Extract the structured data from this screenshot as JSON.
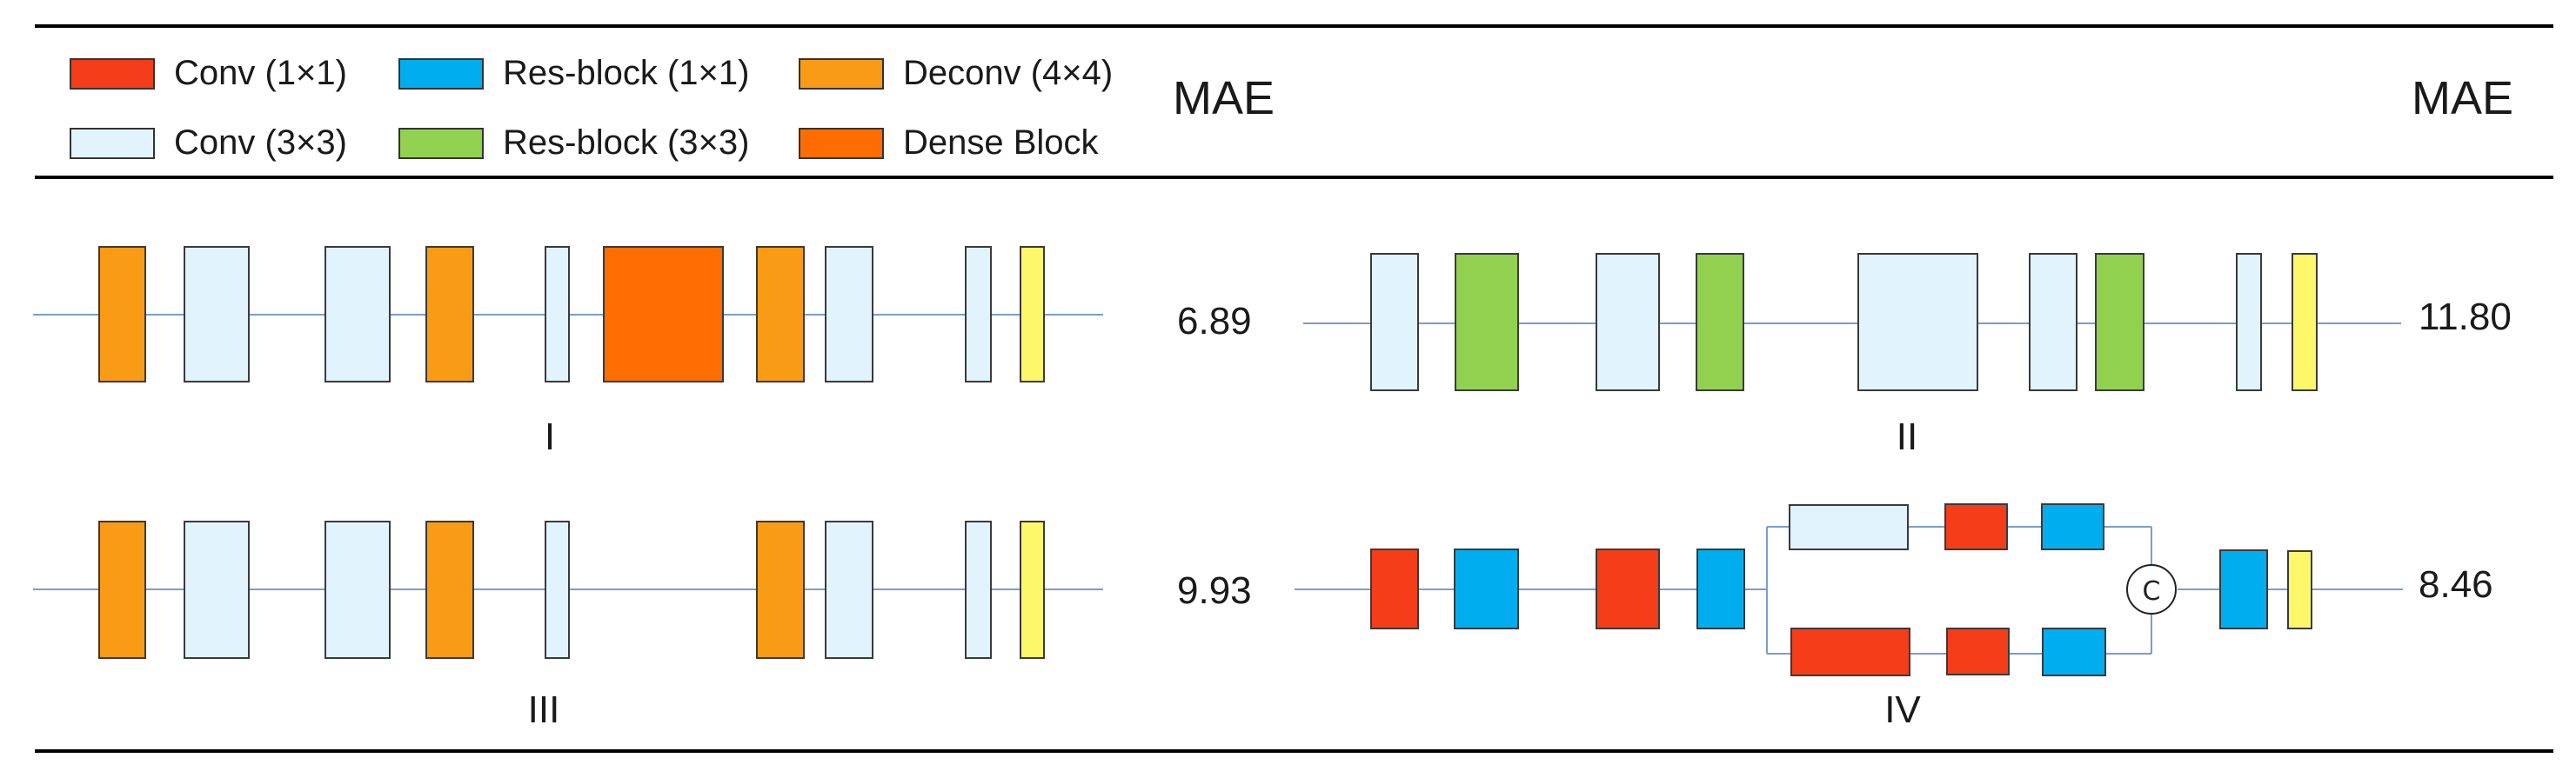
{
  "legend": [
    {
      "label": "Conv (1×1)",
      "color": "#f53d1a"
    },
    {
      "label": "Res-block (1×1)",
      "color": "#00aeef"
    },
    {
      "label": "Deconv (4×4)",
      "color": "#f99b14"
    },
    {
      "label": "Conv (3×3)",
      "color": "#e1f3fc"
    },
    {
      "label": "Res-block (3×3)",
      "color": "#92d050"
    },
    {
      "label": "Dense Block",
      "color": "#ff6d00"
    }
  ],
  "output_block_color": "#fdf76a",
  "line_color": "#7a9cd0",
  "headers": {
    "mae_left": "MAE",
    "mae_right": "MAE"
  },
  "architectures": [
    {
      "label": "I",
      "mae": "6.89"
    },
    {
      "label": "II",
      "mae": "11.80"
    },
    {
      "label": "III",
      "mae": "9.93"
    },
    {
      "label": "IV",
      "mae": "8.46"
    }
  ],
  "concat_symbol": "C"
}
